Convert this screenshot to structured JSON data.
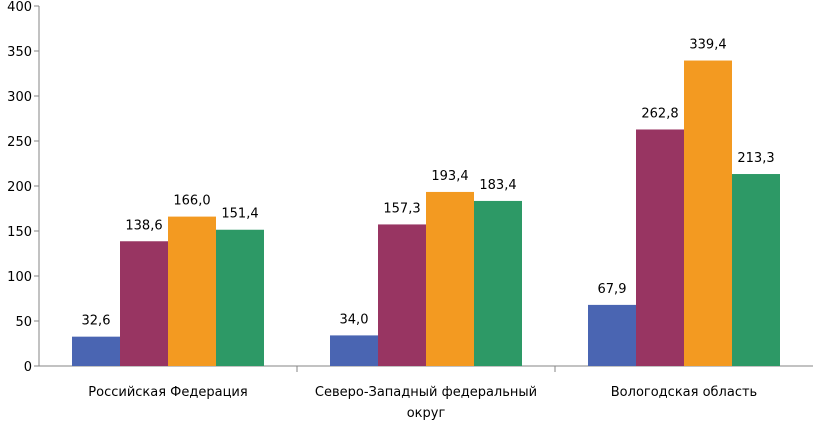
{
  "chart_data": {
    "type": "bar",
    "categories": [
      [
        "Российская Федерация"
      ],
      [
        "Северо-Западный федеральный",
        "округ"
      ],
      [
        "Вологодская область"
      ]
    ],
    "series": [
      {
        "values": [
          32.6,
          34.0,
          67.9
        ],
        "labels": [
          "32,6",
          "34,0",
          "67,9"
        ],
        "color": "#4a65b2"
      },
      {
        "values": [
          138.6,
          157.3,
          262.8
        ],
        "labels": [
          "138,6",
          "157,3",
          "262,8"
        ],
        "color": "#983562"
      },
      {
        "values": [
          166.0,
          193.4,
          339.4
        ],
        "labels": [
          "166,0",
          "193,4",
          "339,4"
        ],
        "color": "#f39a21"
      },
      {
        "values": [
          151.4,
          183.4,
          213.3
        ],
        "labels": [
          "151,4",
          "183,4",
          "213,3"
        ],
        "color": "#2d9966"
      }
    ],
    "ylim": [
      0,
      400
    ],
    "yticks": [
      0,
      50,
      100,
      150,
      200,
      250,
      300,
      350,
      400
    ],
    "grid": false,
    "legend": "none"
  }
}
